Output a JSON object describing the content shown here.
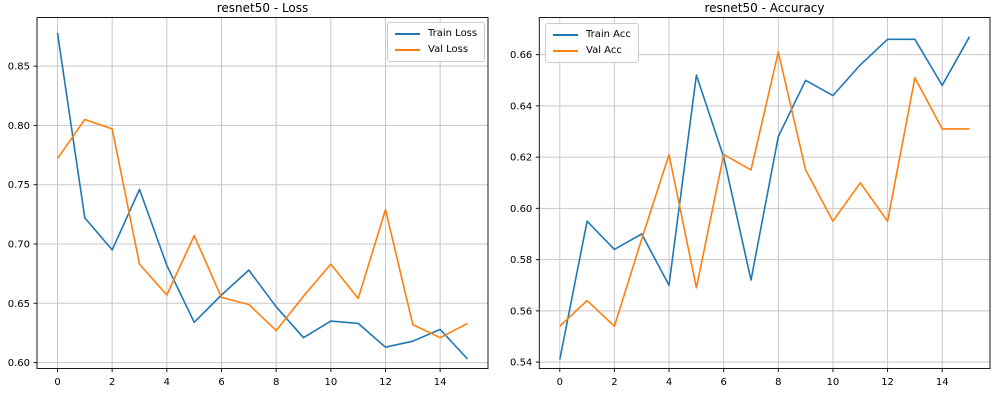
{
  "figure": {
    "background": "#ffffff"
  },
  "style": {
    "grid_color": "#c8c8c8",
    "spine_color": "#1a1a1a",
    "text_color": "#000000",
    "tick_font_size": 10,
    "title_font_size": 12
  },
  "chart_data": [
    {
      "type": "line",
      "title": "resnet50 - Loss",
      "xlabel": "",
      "ylabel": "",
      "x": [
        0,
        1,
        2,
        3,
        4,
        5,
        6,
        7,
        8,
        9,
        10,
        11,
        12,
        13,
        14,
        15
      ],
      "series": [
        {
          "name": "Train Loss",
          "color": "#1f77b4",
          "values": [
            0.878,
            0.722,
            0.695,
            0.746,
            0.682,
            0.634,
            0.657,
            0.678,
            0.647,
            0.621,
            0.635,
            0.633,
            0.613,
            0.618,
            0.628,
            0.603
          ]
        },
        {
          "name": "Val Loss",
          "color": "#ff7f0e",
          "values": [
            0.772,
            0.805,
            0.797,
            0.683,
            0.657,
            0.707,
            0.655,
            0.649,
            0.627,
            0.656,
            0.683,
            0.654,
            0.729,
            0.632,
            0.621,
            0.633
          ]
        }
      ],
      "xlim": [
        -0.75,
        15.75
      ],
      "ylim": [
        0.595,
        0.891
      ],
      "xticks": [
        0,
        2,
        4,
        6,
        8,
        10,
        12,
        14
      ],
      "xtick_labels": [
        "0",
        "2",
        "4",
        "6",
        "8",
        "10",
        "12",
        "14"
      ],
      "yticks": [
        0.6,
        0.65,
        0.7,
        0.75,
        0.8,
        0.85
      ],
      "ytick_labels": [
        "0.60",
        "0.65",
        "0.70",
        "0.75",
        "0.80",
        "0.85"
      ],
      "grid": true,
      "legend": {
        "location": "upper-right"
      }
    },
    {
      "type": "line",
      "title": "resnet50 - Accuracy",
      "xlabel": "",
      "ylabel": "",
      "x": [
        0,
        1,
        2,
        3,
        4,
        5,
        6,
        7,
        8,
        9,
        10,
        11,
        12,
        13,
        14,
        15
      ],
      "series": [
        {
          "name": "Train Acc",
          "color": "#1f77b4",
          "values": [
            0.541,
            0.595,
            0.584,
            0.59,
            0.57,
            0.652,
            0.62,
            0.572,
            0.628,
            0.65,
            0.644,
            0.656,
            0.666,
            0.666,
            0.648,
            0.667
          ]
        },
        {
          "name": "Val Acc",
          "color": "#ff7f0e",
          "values": [
            0.554,
            0.564,
            0.554,
            0.588,
            0.621,
            0.569,
            0.621,
            0.615,
            0.661,
            0.615,
            0.595,
            0.61,
            0.595,
            0.651,
            0.631,
            0.631
          ]
        }
      ],
      "xlim": [
        -0.75,
        15.75
      ],
      "ylim": [
        0.5375,
        0.6745
      ],
      "xticks": [
        0,
        2,
        4,
        6,
        8,
        10,
        12,
        14
      ],
      "xtick_labels": [
        "0",
        "2",
        "4",
        "6",
        "8",
        "10",
        "12",
        "14"
      ],
      "yticks": [
        0.54,
        0.56,
        0.58,
        0.6,
        0.62,
        0.64,
        0.66
      ],
      "ytick_labels": [
        "0.54",
        "0.56",
        "0.58",
        "0.60",
        "0.62",
        "0.64",
        "0.66"
      ],
      "grid": true,
      "legend": {
        "location": "upper-left"
      }
    }
  ]
}
